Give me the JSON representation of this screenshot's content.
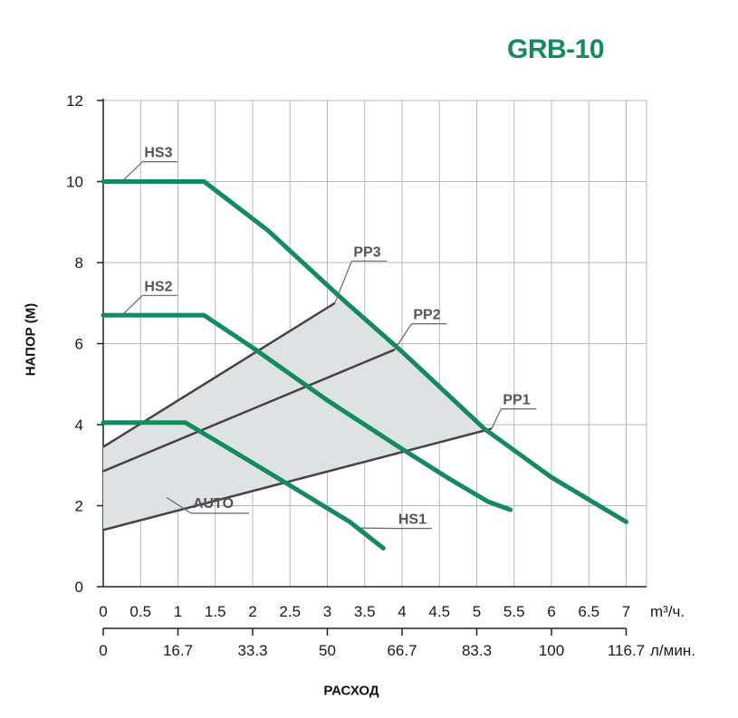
{
  "chart_data": {
    "type": "line",
    "title": "GRB-10",
    "ylabel": "НАПОР (М)",
    "xlabel": "РАСХОД",
    "xlim": [
      0,
      7.2
    ],
    "ylim": [
      0,
      12
    ],
    "x_ticks": [
      "0",
      "0.5",
      "1",
      "1.5",
      "2",
      "2.5",
      "3",
      "3.5",
      "4",
      "4.5",
      "5",
      "5.5",
      "6",
      "6.5",
      "7"
    ],
    "x_tick_values": [
      0,
      0.5,
      1,
      1.5,
      2,
      2.5,
      3,
      3.5,
      4,
      4.5,
      5,
      5.5,
      6,
      6.5,
      7
    ],
    "x_unit": "m³/ч.",
    "x2_ticks": [
      "0",
      "16.7",
      "33.3",
      "50",
      "66.7",
      "83.3",
      "100",
      "116.7"
    ],
    "x2_tick_values": [
      0,
      1,
      2,
      3,
      4,
      5,
      6,
      7
    ],
    "x2_unit": "л/мин.",
    "y_ticks": [
      "0",
      "2",
      "4",
      "6",
      "8",
      "10",
      "12"
    ],
    "y_tick_values": [
      0,
      2,
      4,
      6,
      8,
      10,
      12
    ],
    "grid": true,
    "colors": {
      "pump_curve": "#148a5e",
      "pp_line": "#4a4046",
      "auto_area": "#dde2e5",
      "grid": "#b8b8b8",
      "title": "#148a5e"
    },
    "series": [
      {
        "name": "HS3",
        "kind": "pump",
        "x": [
          0,
          1.35,
          2.2,
          3.2,
          4.0,
          5.1,
          6.0,
          7.0
        ],
        "y": [
          10.0,
          10.0,
          8.8,
          7.1,
          5.8,
          3.9,
          2.7,
          1.6
        ],
        "label_at": [
          0.55,
          10.6
        ]
      },
      {
        "name": "HS2",
        "kind": "pump",
        "x": [
          0,
          1.35,
          2.0,
          3.0,
          4.0,
          4.6,
          5.15,
          5.45
        ],
        "y": [
          6.7,
          6.7,
          5.9,
          4.6,
          3.4,
          2.7,
          2.1,
          1.9
        ],
        "label_at": [
          0.55,
          7.3
        ]
      },
      {
        "name": "HS1",
        "kind": "pump",
        "x": [
          0,
          1.1,
          1.6,
          2.5,
          3.3,
          3.75
        ],
        "y": [
          4.05,
          4.05,
          3.5,
          2.5,
          1.6,
          0.95
        ],
        "label_at": [
          3.95,
          1.55
        ]
      },
      {
        "name": "PP3",
        "kind": "pp",
        "x": [
          0,
          3.1
        ],
        "y": [
          3.45,
          7.0
        ],
        "label_at": [
          3.35,
          8.15
        ]
      },
      {
        "name": "PP2",
        "kind": "pp",
        "x": [
          0,
          3.9
        ],
        "y": [
          2.85,
          5.85
        ],
        "label_at": [
          4.15,
          6.6
        ]
      },
      {
        "name": "PP1",
        "kind": "pp",
        "x": [
          0,
          5.2
        ],
        "y": [
          1.4,
          3.9
        ],
        "label_at": [
          5.35,
          4.5
        ]
      }
    ],
    "auto_area": {
      "name": "AUTO",
      "label_at": [
        1.2,
        1.5
      ]
    }
  }
}
